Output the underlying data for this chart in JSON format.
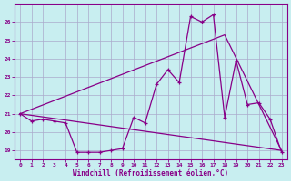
{
  "xlabel": "Windchill (Refroidissement éolien,°C)",
  "background_color": "#c8eef0",
  "grid_color": "#aaaacc",
  "line_color": "#880088",
  "x_ticks": [
    0,
    1,
    2,
    3,
    4,
    5,
    6,
    7,
    8,
    9,
    10,
    11,
    12,
    13,
    14,
    15,
    16,
    17,
    18,
    19,
    20,
    21,
    22,
    23
  ],
  "ylim": [
    18.5,
    27.0
  ],
  "xlim": [
    -0.5,
    23.5
  ],
  "yticks": [
    19,
    20,
    21,
    22,
    23,
    24,
    25,
    26
  ],
  "series1_x": [
    0,
    1,
    2,
    3,
    4,
    5,
    6,
    7,
    8,
    9,
    10,
    11,
    12,
    13,
    14,
    15,
    16,
    17,
    18,
    19,
    20,
    21,
    22,
    23
  ],
  "series1_y": [
    21.0,
    20.6,
    20.7,
    20.6,
    20.5,
    18.9,
    18.9,
    18.9,
    19.0,
    19.1,
    20.8,
    20.5,
    22.6,
    23.4,
    22.7,
    26.3,
    26.0,
    26.4,
    20.8,
    23.9,
    21.5,
    21.6,
    20.7,
    18.9
  ],
  "series2_x": [
    0,
    23
  ],
  "series2_y": [
    21.0,
    19.0
  ],
  "series3_x": [
    0,
    18,
    23
  ],
  "series3_y": [
    21.0,
    25.3,
    19.0
  ]
}
